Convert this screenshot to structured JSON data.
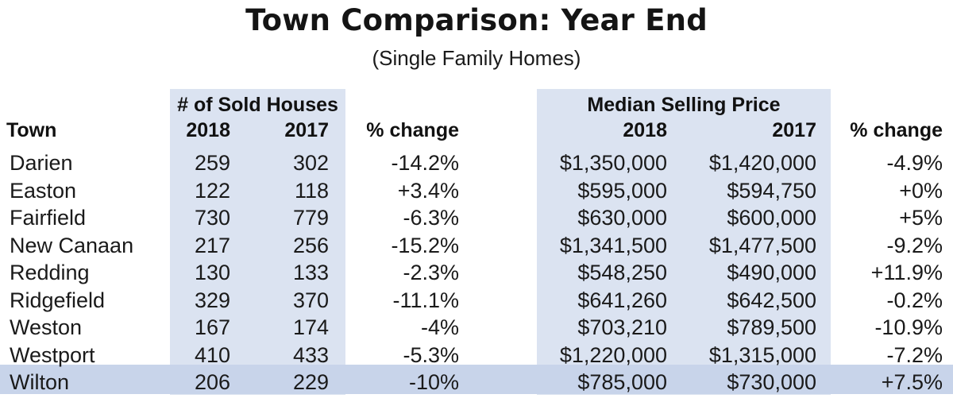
{
  "title": "Town Comparison: Year End",
  "subtitle": "(Single Family Homes)",
  "headers": {
    "town": "Town",
    "sold_group": "# of Sold Houses",
    "sold_2018": "2018",
    "sold_2017": "2017",
    "sold_change": "% change",
    "price_group": "Median Selling Price",
    "price_2018": "2018",
    "price_2017": "2017",
    "price_change": "% change"
  },
  "colors": {
    "column_shade": "#dbe3f1",
    "highlight_row": "#c8d4ea",
    "text": "#1a1a1a"
  },
  "highlight_row_index": 8,
  "chart_data": {
    "type": "table",
    "title": "Town Comparison: Year End",
    "subtitle": "(Single Family Homes)",
    "columns": [
      "Town",
      "# of Sold Houses 2018",
      "# of Sold Houses 2017",
      "% change",
      "Median Selling Price 2018",
      "Median Selling Price 2017",
      "% change"
    ],
    "rows": [
      {
        "town": "Darien",
        "sold_2018": "259",
        "sold_2017": "302",
        "sold_change": "-14.2%",
        "price_2018": "$1,350,000",
        "price_2017": "$1,420,000",
        "price_change": "-4.9%"
      },
      {
        "town": "Easton",
        "sold_2018": "122",
        "sold_2017": "118",
        "sold_change": "+3.4%",
        "price_2018": "$595,000",
        "price_2017": "$594,750",
        "price_change": "+0%"
      },
      {
        "town": "Fairfield",
        "sold_2018": "730",
        "sold_2017": "779",
        "sold_change": "-6.3%",
        "price_2018": "$630,000",
        "price_2017": "$600,000",
        "price_change": "+5%"
      },
      {
        "town": "New Canaan",
        "sold_2018": "217",
        "sold_2017": "256",
        "sold_change": "-15.2%",
        "price_2018": "$1,341,500",
        "price_2017": "$1,477,500",
        "price_change": "-9.2%"
      },
      {
        "town": "Redding",
        "sold_2018": "130",
        "sold_2017": "133",
        "sold_change": "-2.3%",
        "price_2018": "$548,250",
        "price_2017": "$490,000",
        "price_change": "+11.9%"
      },
      {
        "town": "Ridgefield",
        "sold_2018": "329",
        "sold_2017": "370",
        "sold_change": "-11.1%",
        "price_2018": "$641,260",
        "price_2017": "$642,500",
        "price_change": "-0.2%"
      },
      {
        "town": "Weston",
        "sold_2018": "167",
        "sold_2017": "174",
        "sold_change": "-4%",
        "price_2018": "$703,210",
        "price_2017": "$789,500",
        "price_change": "-10.9%"
      },
      {
        "town": "Westport",
        "sold_2018": "410",
        "sold_2017": "433",
        "sold_change": "-5.3%",
        "price_2018": "$1,220,000",
        "price_2017": "$1,315,000",
        "price_change": "-7.2%"
      },
      {
        "town": "Wilton",
        "sold_2018": "206",
        "sold_2017": "229",
        "sold_change": "-10%",
        "price_2018": "$785,000",
        "price_2017": "$730,000",
        "price_change": "+7.5%"
      }
    ]
  }
}
